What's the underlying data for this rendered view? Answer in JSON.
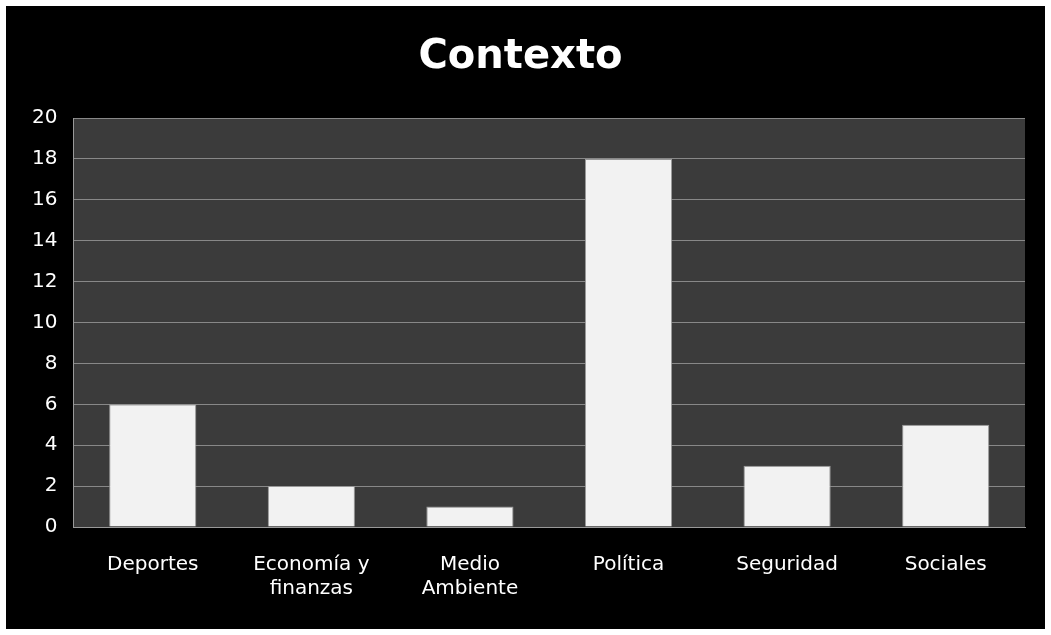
{
  "chart_data": {
    "type": "bar",
    "title": "Contexto",
    "categories": [
      "Deportes",
      "Economía y finanzas",
      "Medio Ambiente",
      "Política",
      "Seguridad",
      "Sociales"
    ],
    "values": [
      6,
      2,
      1,
      18,
      3,
      5
    ],
    "color": "#f2f2f2",
    "ylim": [
      0,
      20
    ],
    "yticks": [
      0,
      2,
      4,
      6,
      8,
      10,
      12,
      14,
      16,
      18,
      20
    ],
    "grid": "y",
    "legend": false
  }
}
